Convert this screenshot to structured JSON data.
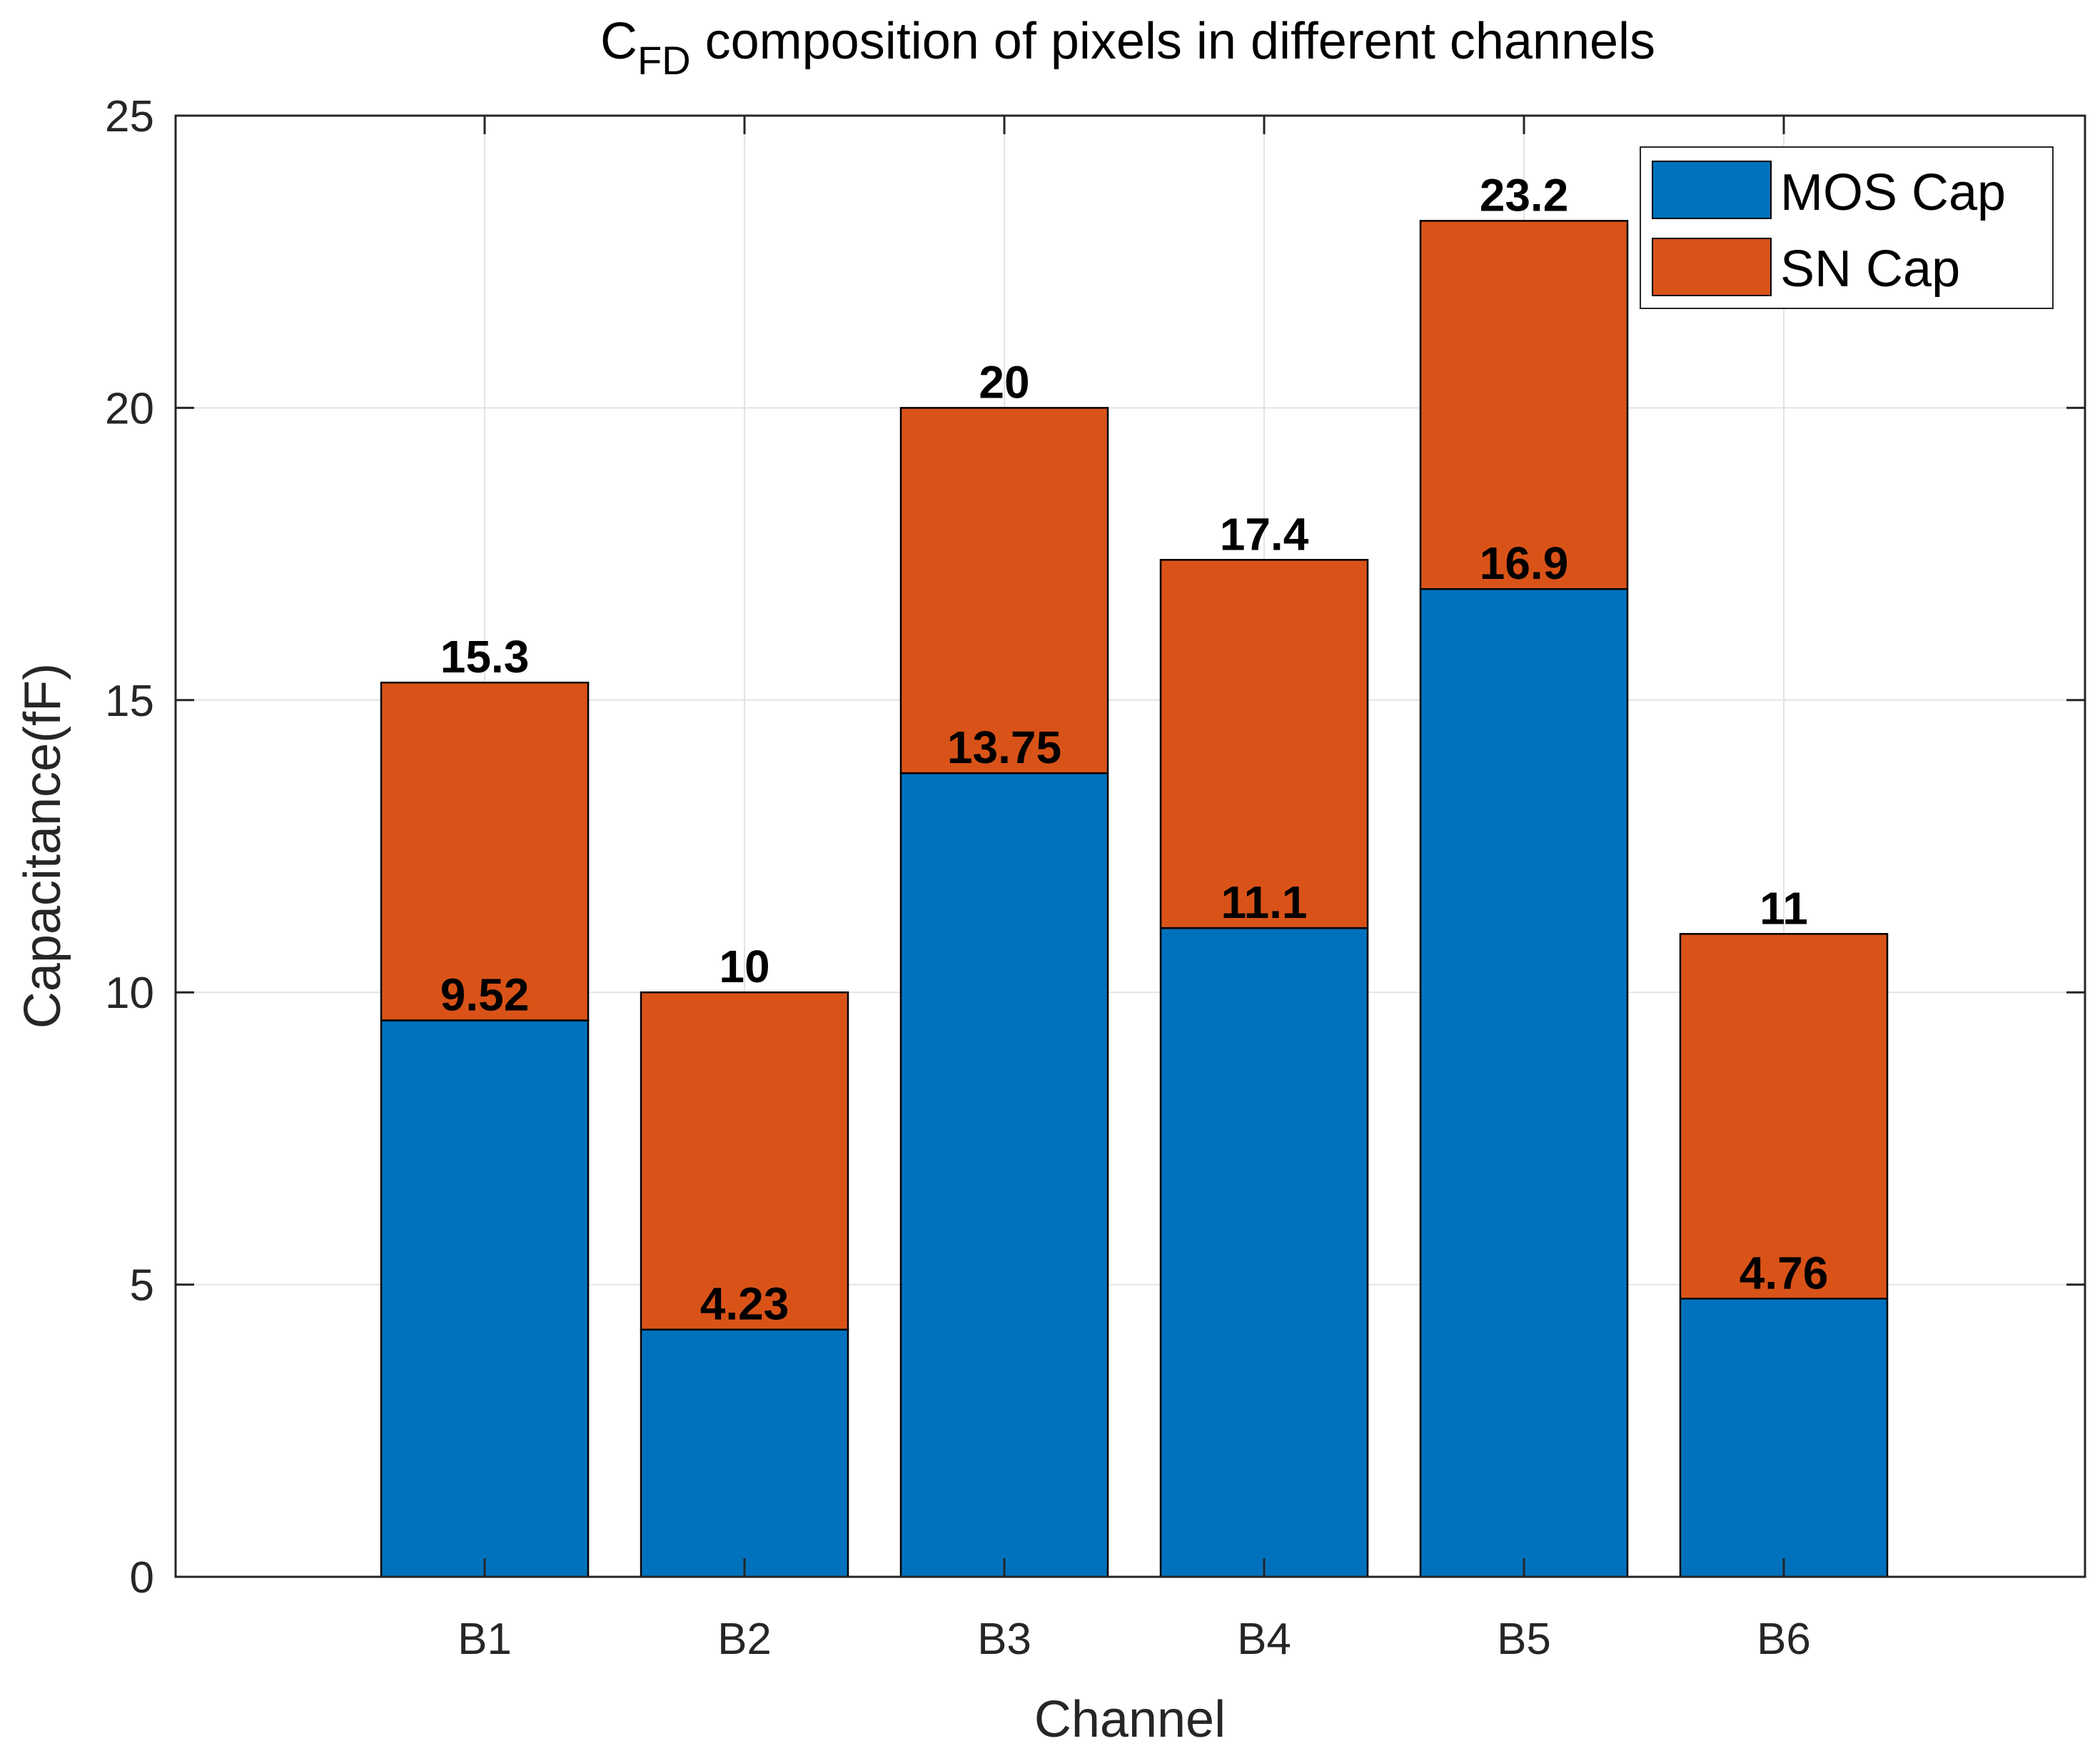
{
  "chart_data": {
    "type": "bar",
    "stacked": true,
    "title": {
      "main": "C",
      "subscript": "FD",
      "rest": " composition of pixels in different channels"
    },
    "xlabel": "Channel",
    "ylabel": "Capacitance(fF)",
    "categories": [
      "B1",
      "B2",
      "B3",
      "B4",
      "B5",
      "B6"
    ],
    "ylim": [
      0,
      25
    ],
    "yticks": [
      0,
      5,
      10,
      15,
      20,
      25
    ],
    "grid": true,
    "legend_position": "top-right",
    "series": [
      {
        "name": "MOS Cap",
        "color": "#0072BD",
        "values": [
          9.52,
          4.23,
          13.75,
          11.1,
          16.9,
          4.76
        ],
        "labels": [
          "9.52",
          "4.23",
          "13.75",
          "11.1",
          "16.9",
          "4.76"
        ]
      },
      {
        "name": "SN Cap",
        "color": "#D95319",
        "values": [
          5.78,
          5.77,
          6.25,
          6.3,
          6.3,
          6.24
        ]
      }
    ],
    "totals": [
      15.3,
      10,
      20,
      17.4,
      23.2,
      11
    ],
    "total_labels": [
      "15.3",
      "10",
      "20",
      "17.4",
      "23.2",
      "11"
    ]
  }
}
